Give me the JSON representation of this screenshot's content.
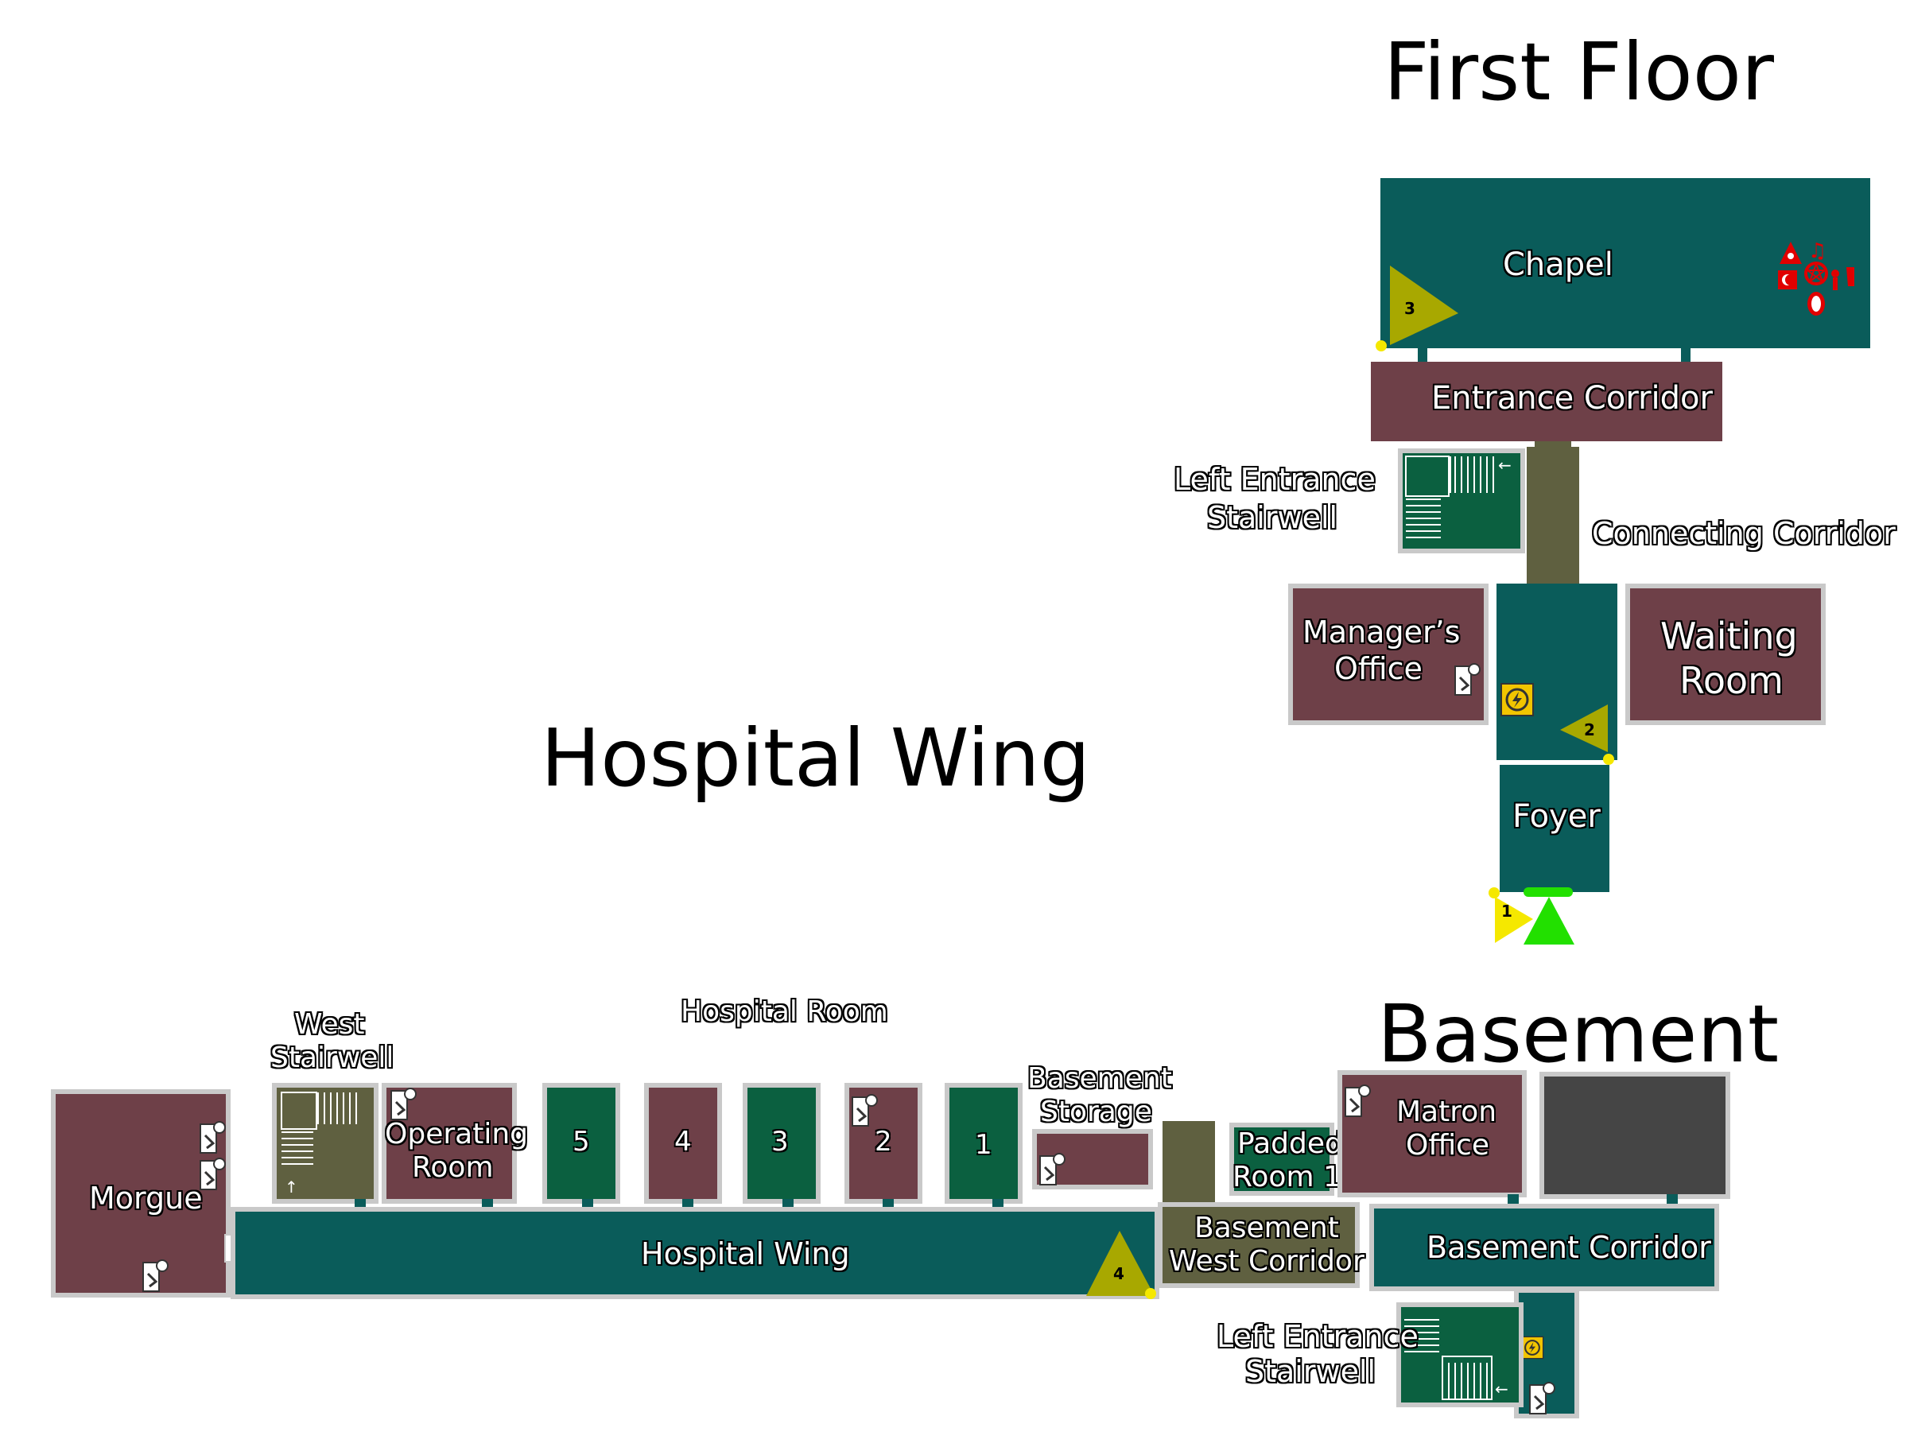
{
  "titles": {
    "first_floor": "First Floor",
    "hospital_wing": "Hospital Wing",
    "basement": "Basement"
  },
  "first_floor": {
    "chapel": "Chapel",
    "entrance_corridor": "Entrance Corridor",
    "left_entrance_stairwell": [
      "Left Entrance",
      "Stairwell"
    ],
    "connecting_corridor": "Connecting Corridor",
    "managers_office": [
      "Manager’s",
      "Office"
    ],
    "waiting_room": [
      "Waiting",
      "Room"
    ],
    "foyer": "Foyer"
  },
  "hospital_wing": {
    "west_stairwell": [
      "West",
      "Stairwell"
    ],
    "hospital_room_header": "Hospital Room",
    "operating_room": [
      "Operating",
      "Room"
    ],
    "morgue": "Morgue",
    "corridor": "Hospital Wing",
    "rooms": [
      "5",
      "4",
      "3",
      "2",
      "1"
    ],
    "basement_storage": [
      "Basement",
      "Storage"
    ]
  },
  "basement": {
    "padded_room": [
      "Padded",
      "Room 1"
    ],
    "matron_office": [
      "Matron",
      "Office"
    ],
    "west_corridor": [
      "Basement",
      "West Corridor"
    ],
    "basement_corridor": "Basement Corridor",
    "left_entrance_stairwell": [
      "Left Entrance",
      "Stairwell"
    ]
  },
  "markers": {
    "m1": "1",
    "m2": "2",
    "m3": "3",
    "m4": "4"
  },
  "colors": {
    "teal": "#0a5c5a",
    "maroon": "#6e4048",
    "green": "#0b6040",
    "olive": "#5f6040",
    "dark_gray": "#454545",
    "marker_olive": "#a8a800",
    "marker_yellow": "#f5e800",
    "entrance_green": "#22e000",
    "ritual_red": "#e00000"
  },
  "icons": [
    "hiding-spot-icon",
    "fuse-box-icon",
    "ritual-items-icon",
    "stairs-icon",
    "entrance-icon"
  ]
}
